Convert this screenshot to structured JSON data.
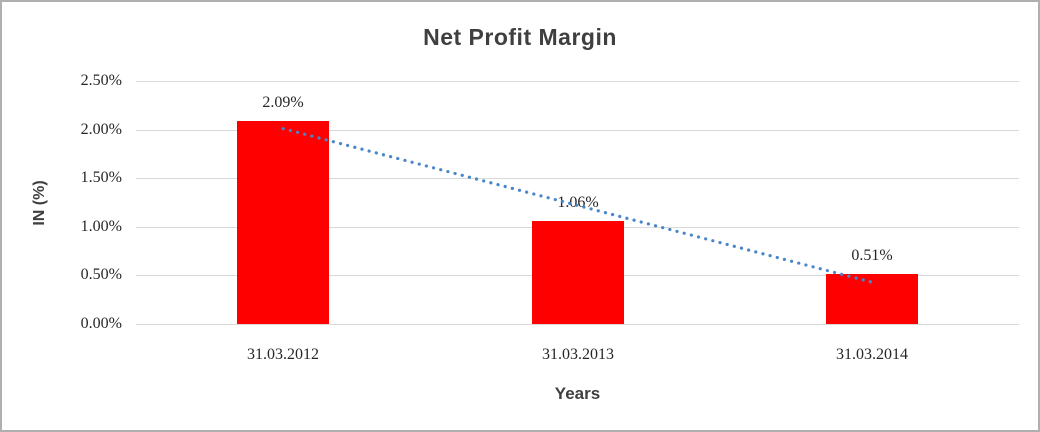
{
  "window": {
    "background": "#ffffff",
    "border_color": "#b0b0b0"
  },
  "chart_data": {
    "type": "bar",
    "title": "Net Profit Margin",
    "xlabel": "Years",
    "ylabel": "IN (%)",
    "categories": [
      "31.03.2012",
      "31.03.2013",
      "31.03.2014"
    ],
    "values": [
      2.09,
      1.06,
      0.51
    ],
    "data_labels": [
      "2.09%",
      "1.06%",
      "0.51%"
    ],
    "ylim": [
      0,
      2.5
    ],
    "ytick_step": 0.5,
    "ytick_labels": [
      "0.00%",
      "0.50%",
      "1.00%",
      "1.50%",
      "2.00%",
      "2.50%"
    ],
    "grid": true,
    "legend": "none",
    "bar_color": "#ff0000",
    "trendline": {
      "type": "linear",
      "style": "dotted",
      "color": "#4a86c9"
    },
    "colors": {
      "title": "#3f3f3f",
      "axis_title": "#3f3f3f",
      "tick_label": "#262626",
      "gridline": "#d9d9d9"
    }
  }
}
